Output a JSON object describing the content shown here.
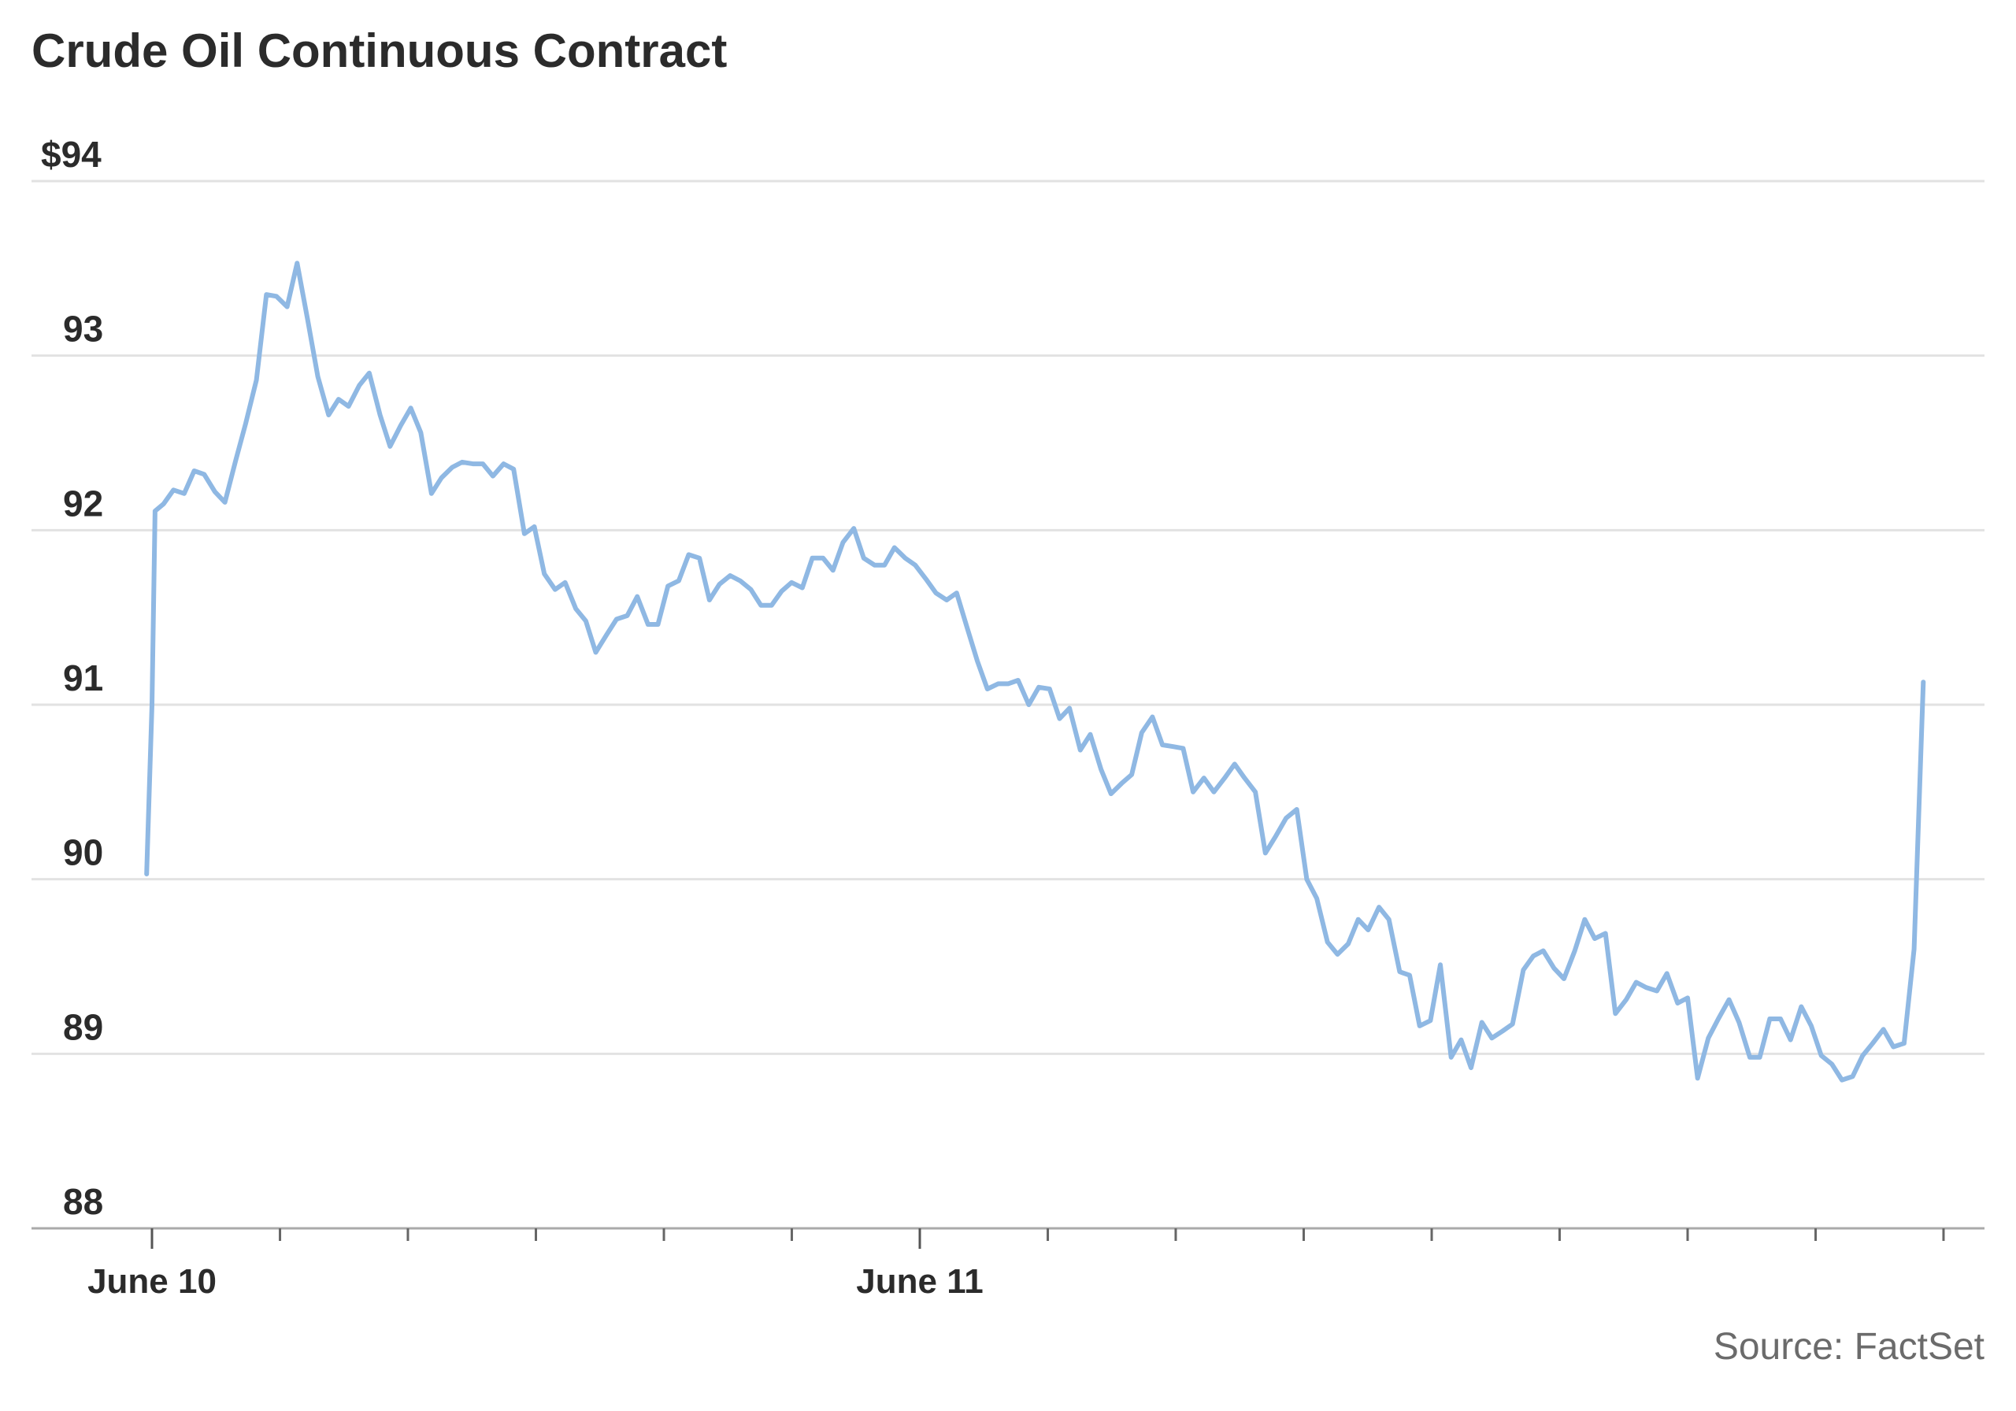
{
  "chart_data": {
    "type": "line",
    "title": "Crude Oil Continuous Contract",
    "source": "Source: FactSet",
    "ylim": [
      88,
      94
    ],
    "yticks": [
      {
        "value": 94,
        "label": "$94"
      },
      {
        "value": 93,
        "label": "93"
      },
      {
        "value": 92,
        "label": "92"
      },
      {
        "value": 91,
        "label": "91"
      },
      {
        "value": 90,
        "label": "90"
      },
      {
        "value": 89,
        "label": "89"
      },
      {
        "value": 88,
        "label": "88"
      }
    ],
    "xlim": [
      -0.04,
      2.6
    ],
    "xticks": [
      {
        "value": 0,
        "label": "June 10"
      },
      {
        "value": 0.1667,
        "label": ""
      },
      {
        "value": 0.3333,
        "label": ""
      },
      {
        "value": 0.5,
        "label": ""
      },
      {
        "value": 0.6667,
        "label": ""
      },
      {
        "value": 0.8333,
        "label": ""
      },
      {
        "value": 1,
        "label": "June 11"
      },
      {
        "value": 1.1667,
        "label": ""
      },
      {
        "value": 1.3333,
        "label": ""
      },
      {
        "value": 1.5,
        "label": ""
      },
      {
        "value": 1.6667,
        "label": ""
      },
      {
        "value": 1.8333,
        "label": ""
      },
      {
        "value": 2,
        "label": ""
      },
      {
        "value": 2.1667,
        "label": ""
      },
      {
        "value": 2.3333,
        "label": ""
      }
    ],
    "colors": {
      "line": "#8fb8e3",
      "grid": "#e2e2e2",
      "axis": "#aaaaaa",
      "text": "#2b2b2b",
      "muted": "#6b6b6b"
    },
    "grid": true,
    "series": [
      {
        "name": "",
        "points": [
          [
            -0.007,
            90.03
          ],
          [
            0.0,
            91.0
          ],
          [
            0.004,
            92.11
          ],
          [
            0.015,
            92.15
          ],
          [
            0.028,
            92.23
          ],
          [
            0.042,
            92.21
          ],
          [
            0.055,
            92.34
          ],
          [
            0.068,
            92.32
          ],
          [
            0.082,
            92.22
          ],
          [
            0.095,
            92.16
          ],
          [
            0.109,
            92.4
          ],
          [
            0.122,
            92.61
          ],
          [
            0.136,
            92.86
          ],
          [
            0.149,
            93.35
          ],
          [
            0.162,
            93.34
          ],
          [
            0.176,
            93.28
          ],
          [
            0.189,
            93.53
          ],
          [
            0.203,
            93.2
          ],
          [
            0.216,
            92.88
          ],
          [
            0.23,
            92.66
          ],
          [
            0.243,
            92.75
          ],
          [
            0.256,
            92.71
          ],
          [
            0.27,
            92.83
          ],
          [
            0.283,
            92.9
          ],
          [
            0.297,
            92.66
          ],
          [
            0.31,
            92.48
          ],
          [
            0.324,
            92.6
          ],
          [
            0.337,
            92.7
          ],
          [
            0.35,
            92.56
          ],
          [
            0.364,
            92.21
          ],
          [
            0.377,
            92.3
          ],
          [
            0.391,
            92.36
          ],
          [
            0.404,
            92.39
          ],
          [
            0.418,
            92.38
          ],
          [
            0.431,
            92.38
          ],
          [
            0.444,
            92.31
          ],
          [
            0.458,
            92.38
          ],
          [
            0.471,
            92.35
          ],
          [
            0.485,
            91.98
          ],
          [
            0.498,
            92.02
          ],
          [
            0.511,
            91.75
          ],
          [
            0.525,
            91.66
          ],
          [
            0.538,
            91.7
          ],
          [
            0.552,
            91.55
          ],
          [
            0.565,
            91.48
          ],
          [
            0.578,
            91.3
          ],
          [
            0.592,
            91.4
          ],
          [
            0.605,
            91.49
          ],
          [
            0.619,
            91.51
          ],
          [
            0.632,
            91.62
          ],
          [
            0.646,
            91.46
          ],
          [
            0.659,
            91.46
          ],
          [
            0.672,
            91.68
          ],
          [
            0.686,
            91.71
          ],
          [
            0.699,
            91.86
          ],
          [
            0.713,
            91.84
          ],
          [
            0.726,
            91.6
          ],
          [
            0.739,
            91.69
          ],
          [
            0.753,
            91.74
          ],
          [
            0.766,
            91.71
          ],
          [
            0.78,
            91.66
          ],
          [
            0.793,
            91.57
          ],
          [
            0.807,
            91.57
          ],
          [
            0.82,
            91.65
          ],
          [
            0.833,
            91.7
          ],
          [
            0.847,
            91.67
          ],
          [
            0.86,
            91.84
          ],
          [
            0.874,
            91.84
          ],
          [
            0.887,
            91.77
          ],
          [
            0.9,
            91.93
          ],
          [
            0.914,
            92.01
          ],
          [
            0.927,
            91.84
          ],
          [
            0.941,
            91.8
          ],
          [
            0.954,
            91.8
          ],
          [
            0.967,
            91.9
          ],
          [
            0.981,
            91.84
          ],
          [
            0.994,
            91.8
          ],
          [
            1.008,
            91.72
          ],
          [
            1.021,
            91.64
          ],
          [
            1.035,
            91.6
          ],
          [
            1.048,
            91.64
          ],
          [
            1.061,
            91.45
          ],
          [
            1.075,
            91.25
          ],
          [
            1.088,
            91.09
          ],
          [
            1.102,
            91.12
          ],
          [
            1.115,
            91.12
          ],
          [
            1.128,
            91.14
          ],
          [
            1.142,
            91.0
          ],
          [
            1.155,
            91.1
          ],
          [
            1.169,
            91.09
          ],
          [
            1.182,
            90.92
          ],
          [
            1.195,
            90.98
          ],
          [
            1.209,
            90.74
          ],
          [
            1.222,
            90.83
          ],
          [
            1.236,
            90.63
          ],
          [
            1.249,
            90.49
          ],
          [
            1.263,
            90.55
          ],
          [
            1.276,
            90.6
          ],
          [
            1.289,
            90.84
          ],
          [
            1.303,
            90.93
          ],
          [
            1.316,
            90.77
          ],
          [
            1.33,
            90.76
          ],
          [
            1.343,
            90.75
          ],
          [
            1.356,
            90.5
          ],
          [
            1.37,
            90.58
          ],
          [
            1.383,
            90.5
          ],
          [
            1.397,
            90.58
          ],
          [
            1.41,
            90.66
          ],
          [
            1.423,
            90.58
          ],
          [
            1.437,
            90.5
          ],
          [
            1.45,
            90.15
          ],
          [
            1.464,
            90.25
          ],
          [
            1.477,
            90.35
          ],
          [
            1.491,
            90.4
          ],
          [
            1.504,
            90.0
          ],
          [
            1.517,
            89.89
          ],
          [
            1.531,
            89.64
          ],
          [
            1.544,
            89.57
          ],
          [
            1.558,
            89.63
          ],
          [
            1.571,
            89.77
          ],
          [
            1.584,
            89.71
          ],
          [
            1.598,
            89.84
          ],
          [
            1.611,
            89.77
          ],
          [
            1.625,
            89.47
          ],
          [
            1.638,
            89.45
          ],
          [
            1.651,
            89.16
          ],
          [
            1.665,
            89.19
          ],
          [
            1.678,
            89.51
          ],
          [
            1.692,
            88.98
          ],
          [
            1.705,
            89.08
          ],
          [
            1.718,
            88.92
          ],
          [
            1.732,
            89.18
          ],
          [
            1.745,
            89.09
          ],
          [
            1.759,
            89.13
          ],
          [
            1.772,
            89.17
          ],
          [
            1.786,
            89.48
          ],
          [
            1.799,
            89.56
          ],
          [
            1.812,
            89.59
          ],
          [
            1.826,
            89.49
          ],
          [
            1.839,
            89.43
          ],
          [
            1.853,
            89.59
          ],
          [
            1.866,
            89.77
          ],
          [
            1.879,
            89.66
          ],
          [
            1.893,
            89.69
          ],
          [
            1.906,
            89.23
          ],
          [
            1.92,
            89.31
          ],
          [
            1.933,
            89.41
          ],
          [
            1.946,
            89.38
          ],
          [
            1.96,
            89.36
          ],
          [
            1.973,
            89.46
          ],
          [
            1.987,
            89.29
          ],
          [
            2.0,
            89.32
          ],
          [
            2.013,
            88.86
          ],
          [
            2.027,
            89.09
          ],
          [
            2.04,
            89.2
          ],
          [
            2.054,
            89.31
          ],
          [
            2.067,
            89.18
          ],
          [
            2.081,
            88.98
          ],
          [
            2.094,
            88.98
          ],
          [
            2.107,
            89.2
          ],
          [
            2.121,
            89.2
          ],
          [
            2.134,
            89.08
          ],
          [
            2.148,
            89.27
          ],
          [
            2.161,
            89.16
          ],
          [
            2.174,
            88.99
          ],
          [
            2.188,
            88.94
          ],
          [
            2.201,
            88.85
          ],
          [
            2.215,
            88.87
          ],
          [
            2.228,
            88.99
          ],
          [
            2.241,
            89.06
          ],
          [
            2.255,
            89.14
          ],
          [
            2.268,
            89.04
          ],
          [
            2.282,
            89.06
          ],
          [
            2.295,
            89.6
          ],
          [
            2.307,
            91.13
          ]
        ]
      }
    ]
  }
}
